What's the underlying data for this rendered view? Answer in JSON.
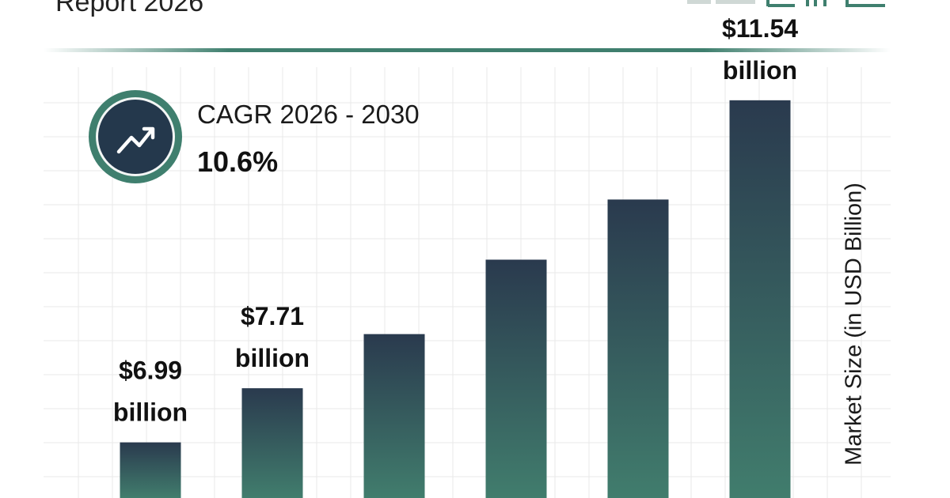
{
  "header": {
    "title": "Report 2026"
  },
  "cagr": {
    "label": "CAGR 2026 - 2030",
    "value": "10.6%",
    "icon": "trending-up-icon"
  },
  "colors": {
    "accent": "#3f7f6e",
    "bar_top": "#2a3a4e",
    "bar_bottom": "#417d6d",
    "badge_inner": "#24384c",
    "grid": "#e9e9e9"
  },
  "chart_data": {
    "type": "bar",
    "categories": [
      "",
      "",
      "",
      "",
      "",
      ""
    ],
    "values": [
      6.99,
      7.71,
      8.43,
      9.42,
      10.22,
      11.54
    ],
    "data_labels": [
      {
        "amount": "$6.99",
        "unit": "billion"
      },
      {
        "amount": "$7.71",
        "unit": "billion"
      },
      null,
      null,
      null,
      {
        "amount": "$11.54",
        "unit": "billion"
      }
    ],
    "title": "",
    "xlabel": "",
    "ylabel": "Market Size (in USD Billion)",
    "ylim": [
      6.25,
      11.98
    ],
    "grid": true,
    "legend": "none"
  }
}
